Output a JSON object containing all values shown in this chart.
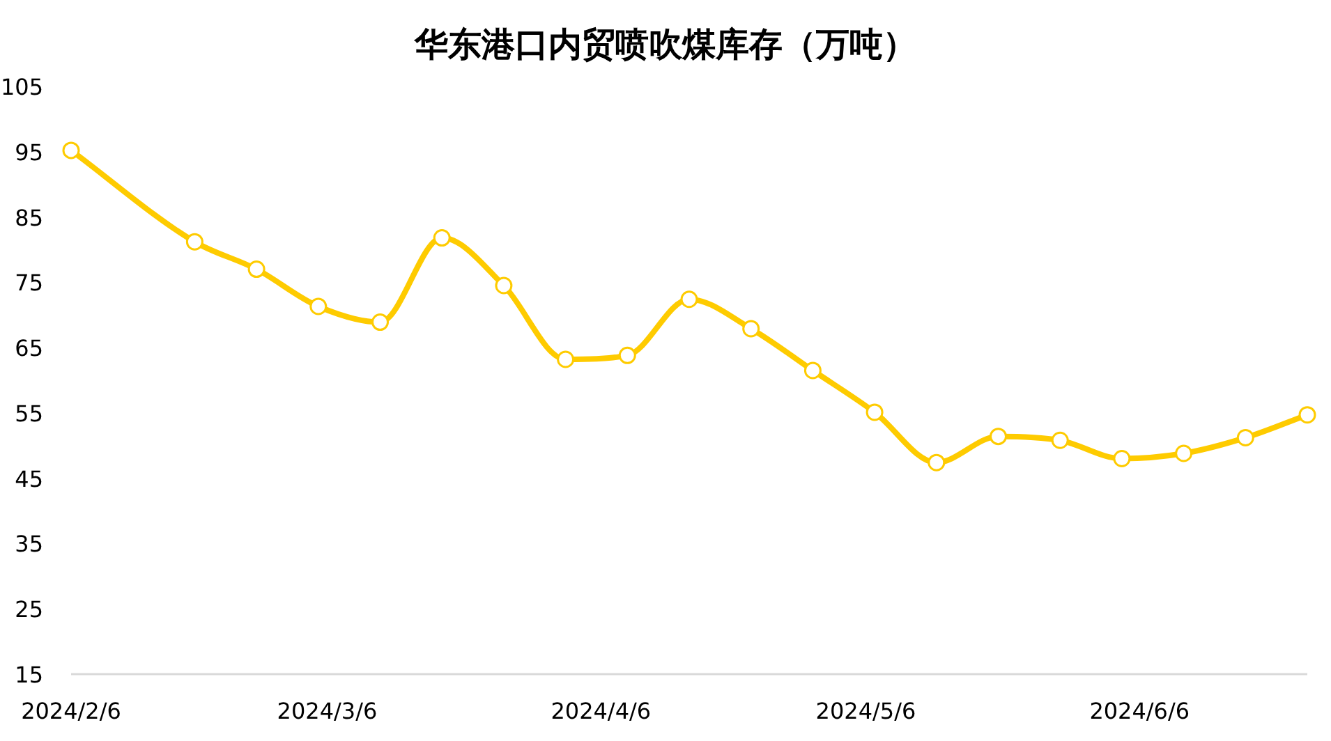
{
  "chart_data": {
    "type": "line",
    "title": "华东港口内贸喷吹煤库存（万吨）",
    "x": [
      "2024-02-06",
      "2024-02-20",
      "2024-02-27",
      "2024-03-05",
      "2024-03-12",
      "2024-03-19",
      "2024-03-26",
      "2024-04-02",
      "2024-04-09",
      "2024-04-16",
      "2024-04-23",
      "2024-04-30",
      "2024-05-07",
      "2024-05-14",
      "2024-05-21",
      "2024-05-28",
      "2024-06-04",
      "2024-06-11",
      "2024-06-18",
      "2024-06-25"
    ],
    "series": [
      {
        "color": "#fecb00",
        "values": [
          95.2,
          81.2,
          77.0,
          71.3,
          68.9,
          81.8,
          74.5,
          63.2,
          63.8,
          72.4,
          67.9,
          61.5,
          55.1,
          47.4,
          51.4,
          50.8,
          48.0,
          48.8,
          51.2,
          54.7
        ]
      }
    ],
    "xlim": [
      "2024-02-06",
      "2024-06-25"
    ],
    "xticks": [
      {
        "value": "2024-02-06",
        "label": "2024/2/6"
      },
      {
        "value": "2024-03-06",
        "label": "2024/3/6"
      },
      {
        "value": "2024-04-06",
        "label": "2024/4/6"
      },
      {
        "value": "2024-05-06",
        "label": "2024/5/6"
      },
      {
        "value": "2024-06-06",
        "label": "2024/6/6"
      }
    ],
    "ylim": [
      15,
      105
    ],
    "yticks": [
      15,
      25,
      35,
      45,
      55,
      65,
      75,
      85,
      95,
      105
    ],
    "grid": false,
    "marker": "circle",
    "line_style": "solid"
  }
}
